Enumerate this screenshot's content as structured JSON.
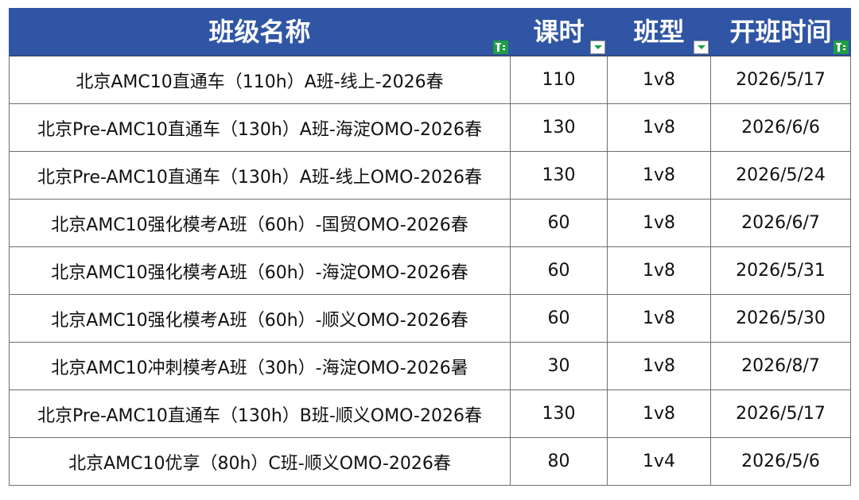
{
  "table": {
    "headers": [
      {
        "label": "班级名称",
        "filter": "sort"
      },
      {
        "label": "课时",
        "filter": "dropdown"
      },
      {
        "label": "班型",
        "filter": "dropdown"
      },
      {
        "label": "开班时间",
        "filter": "sort"
      }
    ],
    "rows": [
      [
        "北京AMC10直通车（110h）A班-线上-2026春",
        "110",
        "1v8",
        "2026/5/17"
      ],
      [
        "北京Pre-AMC10直通车（130h）A班-海淀OMO-2026春",
        "130",
        "1v8",
        "2026/6/6"
      ],
      [
        "北京Pre-AMC10直通车（130h）A班-线上OMO-2026春",
        "130",
        "1v8",
        "2026/5/24"
      ],
      [
        "北京AMC10强化模考A班（60h）-国贸OMO-2026春",
        "60",
        "1v8",
        "2026/6/7"
      ],
      [
        "北京AMC10强化模考A班（60h）-海淀OMO-2026春",
        "60",
        "1v8",
        "2026/5/31"
      ],
      [
        "北京AMC10强化模考A班（60h）-顺义OMO-2026春",
        "60",
        "1v8",
        "2026/5/30"
      ],
      [
        "北京AMC10冲刺模考A班（30h）-海淀OMO-2026暑",
        "30",
        "1v8",
        "2026/8/7"
      ],
      [
        "北京Pre-AMC10直通车（130h）B班-顺义OMO-2026春",
        "130",
        "1v8",
        "2026/5/17"
      ],
      [
        "北京AMC10优享（80h）C班-顺义OMO-2026春",
        "80",
        "1v4",
        "2026/5/6"
      ]
    ]
  },
  "colors": {
    "header_bg": "#2f55a4",
    "header_text": "#ffffff",
    "filter_active": "#1f9d45",
    "grid_line": "#6e6e6e"
  },
  "icons": {
    "sort_filter": "filter-sort-icon",
    "dropdown_filter": "dropdown-arrow-icon"
  }
}
